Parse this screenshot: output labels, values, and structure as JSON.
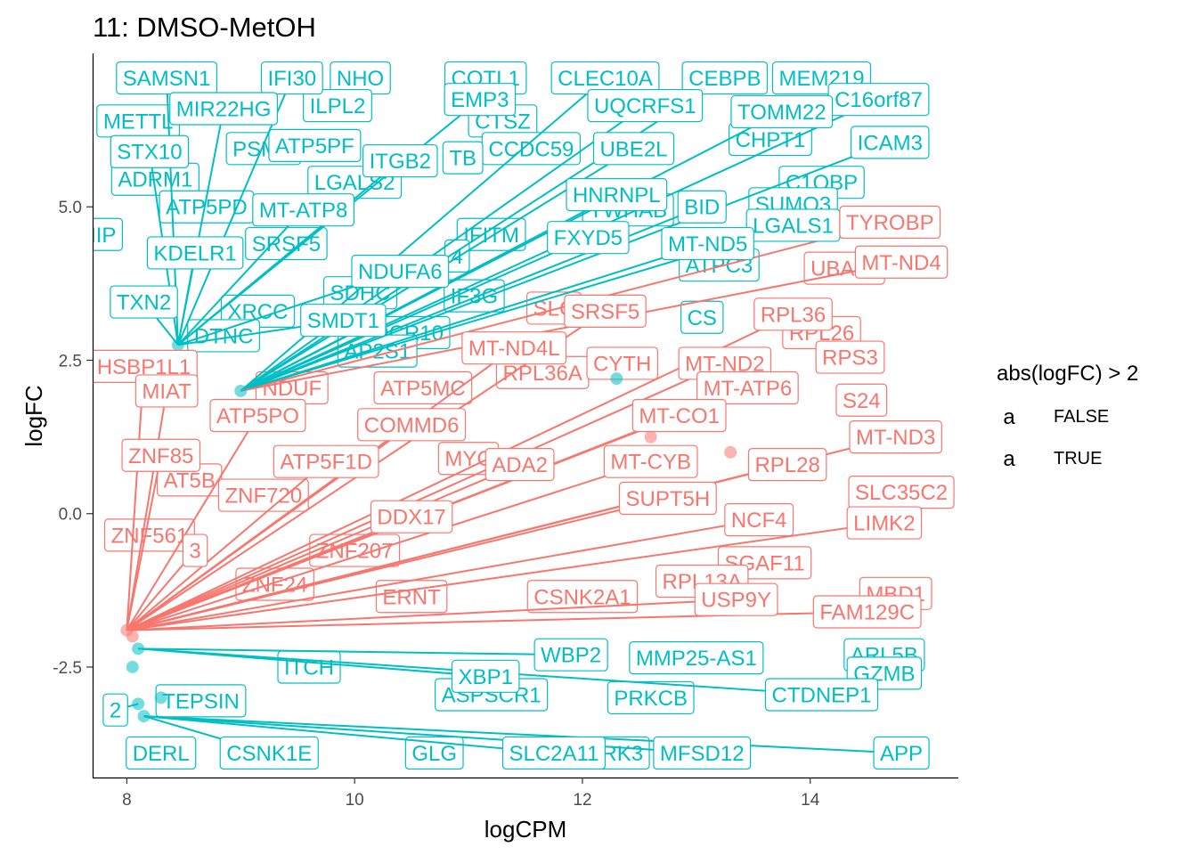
{
  "chart_data": {
    "type": "scatter",
    "title": "11: DMSO-MetOH",
    "xlabel": "logCPM",
    "ylabel": "logFC",
    "xlim": [
      7.7,
      15.3
    ],
    "ylim": [
      -4.3,
      7.5
    ],
    "x_ticks": [
      8,
      10,
      12,
      14
    ],
    "y_ticks": [
      -2.5,
      0.0,
      2.5,
      5.0
    ],
    "x_tick_labels": [
      "8",
      "10",
      "12",
      "14"
    ],
    "y_tick_labels": [
      "-2.5",
      "0.0",
      "2.5",
      "5.0"
    ],
    "grid": false,
    "legend": {
      "title": "abs(logFC) > 2",
      "position": "right",
      "glyph": "a",
      "entries": [
        {
          "label": "FALSE",
          "color": "#F8766D"
        },
        {
          "label": "TRUE",
          "color": "#00BFC4"
        }
      ]
    },
    "colors": {
      "FALSE": "#F8766D",
      "TRUE": "#00BFC4"
    },
    "points": [
      {
        "x": 8.0,
        "y": -1.9,
        "g": "FALSE"
      },
      {
        "x": 8.05,
        "y": -2.0,
        "g": "FALSE"
      },
      {
        "x": 8.1,
        "y": -2.2,
        "g": "TRUE"
      },
      {
        "x": 8.05,
        "y": -2.5,
        "g": "TRUE"
      },
      {
        "x": 8.1,
        "y": -3.1,
        "g": "TRUE"
      },
      {
        "x": 8.15,
        "y": -3.3,
        "g": "TRUE"
      },
      {
        "x": 8.45,
        "y": 2.75,
        "g": "TRUE"
      },
      {
        "x": 9.0,
        "y": 2.0,
        "g": "TRUE"
      },
      {
        "x": 12.3,
        "y": 2.2,
        "g": "TRUE"
      },
      {
        "x": 12.6,
        "y": 1.25,
        "g": "FALSE"
      },
      {
        "x": 13.3,
        "y": 1.0,
        "g": "FALSE"
      },
      {
        "x": 8.3,
        "y": -3.0,
        "g": "TRUE"
      }
    ],
    "labels": [
      {
        "text": "SAMSN1",
        "x": 8.35,
        "y": 7.1,
        "g": "TRUE",
        "ax": 8.45,
        "ay": 2.75
      },
      {
        "text": "IFI30",
        "x": 9.45,
        "y": 7.1,
        "g": "TRUE",
        "ax": 8.45,
        "ay": 2.75
      },
      {
        "text": "CLEC10A",
        "x": 12.2,
        "y": 7.1,
        "g": "TRUE",
        "ax": 9.0,
        "ay": 2.0
      },
      {
        "text": "CEBPB",
        "x": 13.25,
        "y": 7.1,
        "g": "TRUE",
        "ax": 9.0,
        "ay": 2.0
      },
      {
        "text": "C16orf87",
        "x": 14.6,
        "y": 6.75,
        "g": "TRUE",
        "ax": 9.0,
        "ay": 2.0
      },
      {
        "text": "MIR22HG",
        "x": 8.85,
        "y": 6.6,
        "g": "TRUE",
        "ax": 8.45,
        "ay": 2.75
      },
      {
        "text": "EMP3",
        "x": 11.1,
        "y": 6.75,
        "g": "TRUE",
        "ax": 8.45,
        "ay": 2.75
      },
      {
        "text": "UQCRFS1",
        "x": 12.55,
        "y": 6.65,
        "g": "TRUE",
        "ax": 9.0,
        "ay": 2.0
      },
      {
        "text": "TOMM22",
        "x": 13.75,
        "y": 6.55,
        "g": "TRUE",
        "ax": 9.0,
        "ay": 2.0
      },
      {
        "text": "STX10",
        "x": 8.2,
        "y": 5.9,
        "g": "TRUE",
        "ax": 8.45,
        "ay": 2.75
      },
      {
        "text": "ICAM3",
        "x": 14.7,
        "y": 6.05,
        "g": "TRUE",
        "ax": 9.0,
        "ay": 2.0
      },
      {
        "text": "ITGB2",
        "x": 10.4,
        "y": 5.75,
        "g": "TRUE",
        "ax": 8.45,
        "ay": 2.75
      },
      {
        "text": "UBE2L",
        "x": 12.45,
        "y": 5.95,
        "g": "TRUE",
        "ax": 9.0,
        "ay": 2.0
      },
      {
        "text": "HNRNPL",
        "x": 12.3,
        "y": 5.2,
        "g": "TRUE",
        "ax": 9.0,
        "ay": 2.0
      },
      {
        "text": "MT-ATP8",
        "x": 9.55,
        "y": 4.95,
        "g": "TRUE",
        "ax": 8.45,
        "ay": 2.75
      },
      {
        "text": "BID",
        "x": 13.05,
        "y": 5.0,
        "g": "TRUE",
        "ax": 9.0,
        "ay": 2.0
      },
      {
        "text": "LGALS1",
        "x": 13.85,
        "y": 4.7,
        "g": "TRUE",
        "ax": 9.0,
        "ay": 2.0
      },
      {
        "text": "TYROBP",
        "x": 14.7,
        "y": 4.75,
        "g": "FALSE",
        "ax": 9.0,
        "ay": 2.0
      },
      {
        "text": "KDELR1",
        "x": 8.6,
        "y": 4.25,
        "g": "TRUE",
        "ax": 8.45,
        "ay": 2.75
      },
      {
        "text": "FXYD5",
        "x": 12.05,
        "y": 4.5,
        "g": "TRUE",
        "ax": 9.0,
        "ay": 2.0
      },
      {
        "text": "MT-ND5",
        "x": 13.1,
        "y": 4.4,
        "g": "TRUE",
        "ax": 9.0,
        "ay": 2.0
      },
      {
        "text": "MT-ND4",
        "x": 14.8,
        "y": 4.1,
        "g": "FALSE",
        "ax": 9.0,
        "ay": 2.0
      },
      {
        "text": "NDUFA6",
        "x": 10.4,
        "y": 3.95,
        "g": "TRUE",
        "ax": 8.45,
        "ay": 2.75
      },
      {
        "text": "TXN2",
        "x": 8.15,
        "y": 3.45,
        "g": "TRUE",
        "ax": 8.45,
        "ay": 2.75
      },
      {
        "text": "SMDT1",
        "x": 9.9,
        "y": 3.15,
        "g": "TRUE",
        "ax": 8.45,
        "ay": 2.75
      },
      {
        "text": "SRSF5",
        "x": 12.2,
        "y": 3.3,
        "g": "FALSE",
        "ax": 8.0,
        "ay": -1.9
      },
      {
        "text": "RPL36",
        "x": 13.85,
        "y": 3.25,
        "g": "FALSE",
        "ax": 8.0,
        "ay": -1.9
      },
      {
        "text": "MT-ND4L",
        "x": 11.4,
        "y": 2.7,
        "g": "FALSE",
        "ax": 8.0,
        "ay": -1.9
      },
      {
        "text": "HSBP1L1",
        "x": 8.15,
        "y": 2.4,
        "g": "FALSE",
        "ax": 8.0,
        "ay": -1.9
      },
      {
        "text": "MT-ND2",
        "x": 13.25,
        "y": 2.45,
        "g": "FALSE",
        "ax": 8.0,
        "ay": -1.9
      },
      {
        "text": "MT-ATP6",
        "x": 13.45,
        "y": 2.05,
        "g": "FALSE",
        "ax": 8.0,
        "ay": -1.9
      },
      {
        "text": "MIAT",
        "x": 8.35,
        "y": 2.0,
        "g": "FALSE",
        "ax": 8.0,
        "ay": -1.9
      },
      {
        "text": "ATP5PO",
        "x": 9.15,
        "y": 1.6,
        "g": "FALSE",
        "ax": 8.0,
        "ay": -1.9
      },
      {
        "text": "MT-CO1",
        "x": 12.85,
        "y": 1.6,
        "g": "FALSE",
        "ax": 8.0,
        "ay": -1.9
      },
      {
        "text": "COMMD6",
        "x": 10.5,
        "y": 1.45,
        "g": "FALSE",
        "ax": 8.0,
        "ay": -1.9
      },
      {
        "text": "MT-ND3",
        "x": 14.75,
        "y": 1.25,
        "g": "FALSE",
        "ax": 8.0,
        "ay": -1.9
      },
      {
        "text": "ZNF85",
        "x": 8.3,
        "y": 0.95,
        "g": "FALSE",
        "ax": 8.0,
        "ay": -1.9
      },
      {
        "text": "ATP5F1D",
        "x": 9.75,
        "y": 0.85,
        "g": "FALSE",
        "ax": 8.0,
        "ay": -1.9
      },
      {
        "text": "ADA2",
        "x": 11.45,
        "y": 0.8,
        "g": "FALSE",
        "ax": 8.0,
        "ay": -1.9
      },
      {
        "text": "MT-CYB",
        "x": 12.6,
        "y": 0.85,
        "g": "FALSE",
        "ax": 8.0,
        "ay": -1.9
      },
      {
        "text": "RPL28",
        "x": 13.8,
        "y": 0.8,
        "g": "FALSE",
        "ax": 8.0,
        "ay": -1.9
      },
      {
        "text": "SUPT5H",
        "x": 12.75,
        "y": 0.25,
        "g": "FALSE",
        "ax": 8.0,
        "ay": -1.9
      },
      {
        "text": "DDX17",
        "x": 10.5,
        "y": -0.05,
        "g": "FALSE",
        "ax": 8.0,
        "ay": -1.9
      },
      {
        "text": "NCF4",
        "x": 13.55,
        "y": -0.1,
        "g": "FALSE",
        "ax": 8.0,
        "ay": -1.9
      },
      {
        "text": "LIMK2",
        "x": 14.65,
        "y": -0.15,
        "g": "FALSE",
        "ax": 8.0,
        "ay": -1.9
      },
      {
        "text": "3",
        "x": 8.6,
        "y": -0.6,
        "g": "FALSE",
        "ax": 8.0,
        "ay": -1.9
      },
      {
        "text": "USP9Y",
        "x": 13.35,
        "y": -1.4,
        "g": "FALSE",
        "ax": 8.0,
        "ay": -1.9
      },
      {
        "text": "FAM129C",
        "x": 14.5,
        "y": -1.6,
        "g": "FALSE",
        "ax": 8.0,
        "ay": -1.9
      },
      {
        "text": "WBP2",
        "x": 11.9,
        "y": -2.3,
        "g": "TRUE",
        "ax": 8.1,
        "ay": -2.2
      },
      {
        "text": "XBP1",
        "x": 11.15,
        "y": -2.65,
        "g": "TRUE",
        "ax": 8.1,
        "ay": -2.2
      },
      {
        "text": "CTDNEP1",
        "x": 14.1,
        "y": -2.95,
        "g": "TRUE",
        "ax": 8.1,
        "ay": -2.2
      },
      {
        "text": "2",
        "x": 7.9,
        "y": -3.2,
        "g": "TRUE",
        "ax": 8.1,
        "ay": -3.1
      },
      {
        "text": "CSNK1E",
        "x": 9.25,
        "y": -3.9,
        "g": "TRUE",
        "ax": 8.15,
        "ay": -3.3
      },
      {
        "text": "SLC2A11",
        "x": 11.75,
        "y": -3.9,
        "g": "TRUE",
        "ax": 8.15,
        "ay": -3.3
      },
      {
        "text": "MFSD12",
        "x": 13.05,
        "y": -3.9,
        "g": "TRUE",
        "ax": 8.15,
        "ay": -3.3
      },
      {
        "text": "APP",
        "x": 14.8,
        "y": -3.9,
        "g": "TRUE",
        "ax": 8.15,
        "ay": -3.3
      }
    ],
    "background_labels": [
      {
        "text": "NHO",
        "x": 10.05,
        "y": 7.1,
        "g": "TRUE"
      },
      {
        "text": "COTL1",
        "x": 11.15,
        "y": 7.1,
        "g": "TRUE"
      },
      {
        "text": "MEM219",
        "x": 14.1,
        "y": 7.1,
        "g": "TRUE"
      },
      {
        "text": "METTL",
        "x": 8.1,
        "y": 6.4,
        "g": "TRUE"
      },
      {
        "text": "ILPL2",
        "x": 9.85,
        "y": 6.65,
        "g": "TRUE"
      },
      {
        "text": "CTSZ",
        "x": 11.3,
        "y": 6.4,
        "g": "TRUE"
      },
      {
        "text": "PSMD",
        "x": 9.2,
        "y": 5.95,
        "g": "TRUE"
      },
      {
        "text": "ATP5PF",
        "x": 9.65,
        "y": 6.0,
        "g": "TRUE"
      },
      {
        "text": "CCDC59",
        "x": 11.55,
        "y": 5.95,
        "g": "TRUE"
      },
      {
        "text": "CHPT1",
        "x": 13.65,
        "y": 6.1,
        "g": "TRUE"
      },
      {
        "text": "ADRM1",
        "x": 8.25,
        "y": 5.45,
        "g": "TRUE"
      },
      {
        "text": "LGALS2",
        "x": 10.0,
        "y": 5.4,
        "g": "TRUE"
      },
      {
        "text": "TB",
        "x": 10.95,
        "y": 5.8,
        "g": "TRUE"
      },
      {
        "text": "C1QBP",
        "x": 14.1,
        "y": 5.4,
        "g": "TRUE"
      },
      {
        "text": "ATP5PD",
        "x": 8.7,
        "y": 5.0,
        "g": "TRUE"
      },
      {
        "text": "YWHAB",
        "x": 12.4,
        "y": 4.95,
        "g": "TRUE"
      },
      {
        "text": "SUMO3",
        "x": 13.85,
        "y": 5.05,
        "g": "TRUE"
      },
      {
        "text": "NIP",
        "x": 7.75,
        "y": 4.55,
        "g": "TRUE"
      },
      {
        "text": "SRSF5",
        "x": 9.4,
        "y": 4.4,
        "g": "TRUE"
      },
      {
        "text": "IFITM",
        "x": 11.2,
        "y": 4.55,
        "g": "TRUE"
      },
      {
        "text": "4",
        "x": 10.9,
        "y": 4.2,
        "g": "TRUE"
      },
      {
        "text": "ATPC3",
        "x": 13.2,
        "y": 4.05,
        "g": "TRUE"
      },
      {
        "text": "UBA52",
        "x": 14.3,
        "y": 4.0,
        "g": "FALSE"
      },
      {
        "text": "SDHC",
        "x": 10.05,
        "y": 3.6,
        "g": "TRUE"
      },
      {
        "text": "IF3G",
        "x": 11.05,
        "y": 3.55,
        "g": "TRUE"
      },
      {
        "text": "SLC",
        "x": 11.75,
        "y": 3.35,
        "g": "FALSE"
      },
      {
        "text": "XRCC",
        "x": 9.15,
        "y": 3.3,
        "g": "TRUE"
      },
      {
        "text": "CS",
        "x": 13.05,
        "y": 3.2,
        "g": "TRUE"
      },
      {
        "text": "RPL26",
        "x": 14.1,
        "y": 2.95,
        "g": "FALSE"
      },
      {
        "text": "DTNC",
        "x": 8.85,
        "y": 2.9,
        "g": "TRUE"
      },
      {
        "text": "UQCR10",
        "x": 10.4,
        "y": 2.95,
        "g": "TRUE"
      },
      {
        "text": "AP2S1",
        "x": 10.2,
        "y": 2.65,
        "g": "TRUE"
      },
      {
        "text": "RPL36A",
        "x": 11.65,
        "y": 2.3,
        "g": "FALSE"
      },
      {
        "text": "CYTH",
        "x": 12.35,
        "y": 2.45,
        "g": "FALSE"
      },
      {
        "text": "RPS3",
        "x": 14.35,
        "y": 2.55,
        "g": "FALSE"
      },
      {
        "text": "ATP5MC",
        "x": 10.6,
        "y": 2.05,
        "g": "FALSE"
      },
      {
        "text": "NDUF",
        "x": 9.45,
        "y": 2.05,
        "g": "FALSE"
      },
      {
        "text": "S24",
        "x": 14.45,
        "y": 1.85,
        "g": "FALSE"
      },
      {
        "text": "AT5B",
        "x": 8.55,
        "y": 0.55,
        "g": "FALSE"
      },
      {
        "text": "ZNF720",
        "x": 9.2,
        "y": 0.3,
        "g": "FALSE"
      },
      {
        "text": "MYC",
        "x": 11.0,
        "y": 0.9,
        "g": "FALSE"
      },
      {
        "text": "SLC35C2",
        "x": 14.8,
        "y": 0.35,
        "g": "FALSE"
      },
      {
        "text": "ZNF561",
        "x": 8.2,
        "y": -0.35,
        "g": "FALSE"
      },
      {
        "text": "ZNF207",
        "x": 10.0,
        "y": -0.6,
        "g": "FALSE"
      },
      {
        "text": "SGAF11",
        "x": 13.6,
        "y": -0.8,
        "g": "FALSE"
      },
      {
        "text": "ZNF24",
        "x": 9.3,
        "y": -1.15,
        "g": "FALSE"
      },
      {
        "text": "ERNT",
        "x": 10.5,
        "y": -1.35,
        "g": "FALSE"
      },
      {
        "text": "CSNK2A1",
        "x": 12.0,
        "y": -1.35,
        "g": "FALSE"
      },
      {
        "text": "RPL13A",
        "x": 13.05,
        "y": -1.1,
        "g": "FALSE"
      },
      {
        "text": "MBD1",
        "x": 14.75,
        "y": -1.3,
        "g": "FALSE"
      },
      {
        "text": "ARL5B",
        "x": 14.65,
        "y": -2.3,
        "g": "TRUE"
      },
      {
        "text": "MMP25-AS1",
        "x": 13.0,
        "y": -2.35,
        "g": "TRUE"
      },
      {
        "text": "ITCH",
        "x": 9.6,
        "y": -2.5,
        "g": "TRUE"
      },
      {
        "text": "GZMB",
        "x": 14.65,
        "y": -2.6,
        "g": "TRUE"
      },
      {
        "text": "TEPSIN",
        "x": 8.65,
        "y": -3.05,
        "g": "TRUE"
      },
      {
        "text": "ASPSCR1",
        "x": 11.2,
        "y": -2.95,
        "g": "TRUE"
      },
      {
        "text": "PRKCB",
        "x": 12.6,
        "y": -3.0,
        "g": "TRUE"
      },
      {
        "text": "DERL",
        "x": 8.3,
        "y": -3.9,
        "g": "TRUE"
      },
      {
        "text": "GLG",
        "x": 10.7,
        "y": -3.9,
        "g": "TRUE"
      },
      {
        "text": "RK3",
        "x": 12.35,
        "y": -3.9,
        "g": "TRUE"
      }
    ]
  }
}
